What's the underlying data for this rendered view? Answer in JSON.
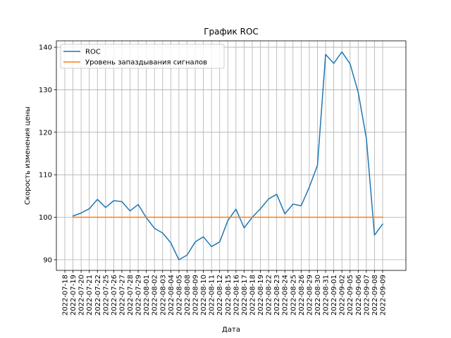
{
  "chart_data": {
    "type": "line",
    "title": "График ROC",
    "xlabel": "Дата",
    "ylabel": "Скорость изменения цены",
    "ylim": [
      87.5,
      141.5
    ],
    "y_ticks": [
      90,
      100,
      110,
      120,
      130,
      140
    ],
    "grid": true,
    "legend_position": "top-left",
    "x_ticks": [
      "2022-07-18",
      "2022-07-19",
      "2022-07-20",
      "2022-07-21",
      "2022-07-22",
      "2022-07-25",
      "2022-07-26",
      "2022-07-27",
      "2022-07-28",
      "2022-07-29",
      "2022-08-01",
      "2022-08-02",
      "2022-08-03",
      "2022-08-04",
      "2022-08-05",
      "2022-08-08",
      "2022-08-09",
      "2022-08-10",
      "2022-08-11",
      "2022-08-12",
      "2022-08-15",
      "2022-08-16",
      "2022-08-17",
      "2022-08-18",
      "2022-08-19",
      "2022-08-22",
      "2022-08-23",
      "2022-08-24",
      "2022-08-25",
      "2022-08-26",
      "2022-08-29",
      "2022-08-30",
      "2022-08-31",
      "2022-09-01",
      "2022-09-02",
      "2022-09-05",
      "2022-09-06",
      "2022-09-07",
      "2022-09-08",
      "2022-09-09"
    ],
    "series": [
      {
        "name": "ROC",
        "color": "#1f77b4",
        "x": [
          "2022-07-19",
          "2022-07-20",
          "2022-07-21",
          "2022-07-22",
          "2022-07-25",
          "2022-07-26",
          "2022-07-27",
          "2022-07-28",
          "2022-07-29",
          "2022-08-01",
          "2022-08-02",
          "2022-08-03",
          "2022-08-04",
          "2022-08-05",
          "2022-08-08",
          "2022-08-09",
          "2022-08-10",
          "2022-08-11",
          "2022-08-12",
          "2022-08-15",
          "2022-08-16",
          "2022-08-17",
          "2022-08-18",
          "2022-08-19",
          "2022-08-22",
          "2022-08-23",
          "2022-08-24",
          "2022-08-25",
          "2022-08-26",
          "2022-08-29",
          "2022-08-30",
          "2022-08-31",
          "2022-09-01",
          "2022-09-02",
          "2022-09-05",
          "2022-09-06",
          "2022-09-07",
          "2022-09-08",
          "2022-09-09"
        ],
        "values": [
          100.3,
          101.0,
          102.0,
          104.2,
          102.3,
          103.9,
          103.7,
          101.5,
          103.0,
          99.9,
          97.4,
          96.3,
          94.0,
          90.0,
          91.1,
          94.2,
          95.4,
          93.1,
          94.2,
          99.2,
          101.9,
          97.5,
          100.0,
          102.0,
          104.3,
          105.4,
          100.8,
          103.1,
          102.7,
          107.1,
          112.2,
          138.3,
          136.2,
          138.9,
          136.1,
          129.4,
          118.6,
          95.8,
          98.4
        ]
      },
      {
        "name": "Уровень запаздывания сигналов",
        "color": "#ff7f0e",
        "x": [
          "2022-07-19",
          "2022-09-09"
        ],
        "values": [
          100,
          100
        ]
      }
    ]
  }
}
